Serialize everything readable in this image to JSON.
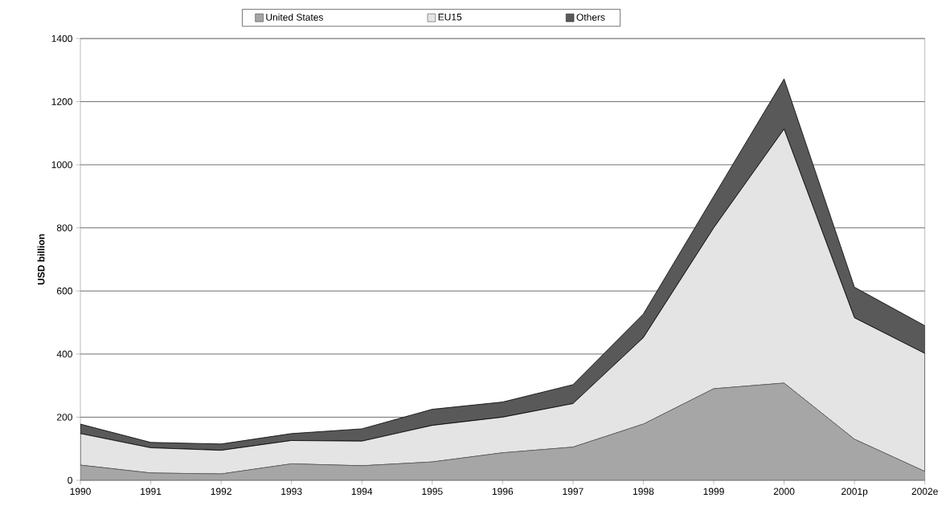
{
  "chart_data": {
    "type": "area",
    "stacked": true,
    "ylabel": "USD billion",
    "categories": [
      "1990",
      "1991",
      "1992",
      "1993",
      "1994",
      "1995",
      "1996",
      "1997",
      "1998",
      "1999",
      "2000",
      "2001p",
      "2002e"
    ],
    "series": [
      {
        "name": "United States",
        "color": "#a6a6a6",
        "values": [
          48,
          23,
          20,
          52,
          46,
          58,
          87,
          105,
          178,
          290,
          308,
          130,
          28
        ]
      },
      {
        "name": "EU15",
        "color": "#e4e4e4",
        "values": [
          100,
          80,
          75,
          74,
          78,
          116,
          113,
          138,
          274,
          510,
          805,
          385,
          374
        ]
      },
      {
        "name": "Others",
        "color": "#595959",
        "values": [
          30,
          17,
          20,
          22,
          39,
          51,
          48,
          60,
          75,
          100,
          159,
          97,
          88
        ]
      }
    ],
    "ylim": [
      0,
      1400
    ],
    "yticks": [
      0,
      200,
      400,
      600,
      800,
      1000,
      1200,
      1400
    ],
    "grid": "y",
    "legend": "top"
  }
}
